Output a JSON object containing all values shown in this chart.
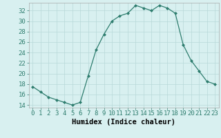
{
  "x": [
    0,
    1,
    2,
    3,
    4,
    5,
    6,
    7,
    8,
    9,
    10,
    11,
    12,
    13,
    14,
    15,
    16,
    17,
    18,
    19,
    20,
    21,
    22,
    23
  ],
  "y": [
    17.5,
    16.5,
    15.5,
    15.0,
    14.5,
    14.0,
    14.5,
    19.5,
    24.5,
    27.5,
    30.0,
    31.0,
    31.5,
    33.0,
    32.5,
    32.0,
    33.0,
    32.5,
    31.5,
    25.5,
    22.5,
    20.5,
    18.5,
    18.0
  ],
  "xlabel": "Humidex (Indice chaleur)",
  "xlim": [
    -0.5,
    23.5
  ],
  "ylim": [
    13.5,
    33.5
  ],
  "yticks": [
    14,
    16,
    18,
    20,
    22,
    24,
    26,
    28,
    30,
    32
  ],
  "xticks": [
    0,
    1,
    2,
    3,
    4,
    5,
    6,
    7,
    8,
    9,
    10,
    11,
    12,
    13,
    14,
    15,
    16,
    17,
    18,
    19,
    20,
    21,
    22,
    23
  ],
  "line_color": "#2e7d6e",
  "marker": "D",
  "marker_size": 2.0,
  "bg_color": "#d8f0f0",
  "grid_color": "#b8d8d8",
  "xlabel_fontsize": 7.5,
  "tick_fontsize": 6.5
}
